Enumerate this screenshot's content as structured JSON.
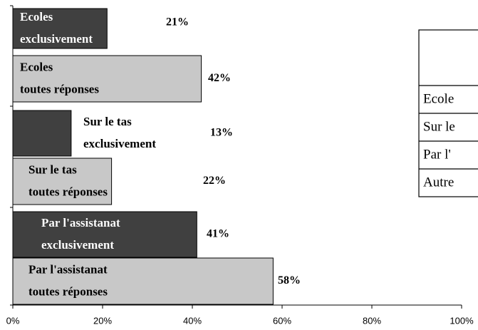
{
  "chart_data": {
    "type": "barh",
    "categories": [
      [
        "Ecoles",
        "exclusivement"
      ],
      [
        "Ecoles",
        "toutes réponses"
      ],
      [
        "Sur le tas",
        "exclusivement"
      ],
      [
        "Sur le tas",
        "toutes réponses"
      ],
      [
        "Par l'assistanat",
        "exclusivement"
      ],
      [
        "Par l'assistanat",
        "toutes réponses"
      ]
    ],
    "values": [
      21,
      42,
      13,
      22,
      41,
      58
    ],
    "value_labels": [
      "21%",
      "42%",
      "13%",
      "22%",
      "41%",
      "58%"
    ],
    "colors": [
      "#404040",
      "#c8c8c8",
      "#404040",
      "#c8c8c8",
      "#404040",
      "#c8c8c8"
    ],
    "xlim": [
      0,
      100
    ],
    "xticks": [
      {
        "value": 0,
        "label": "0%"
      },
      {
        "value": 20,
        "label": "20%"
      },
      {
        "value": 40,
        "label": "40%"
      },
      {
        "value": 60,
        "label": "60%"
      },
      {
        "value": 80,
        "label": "80%"
      },
      {
        "value": 100,
        "label": "100%"
      }
    ]
  },
  "table": {
    "rows": [
      "Ecole",
      "Sur le",
      "Par l'",
      "Autre"
    ]
  }
}
